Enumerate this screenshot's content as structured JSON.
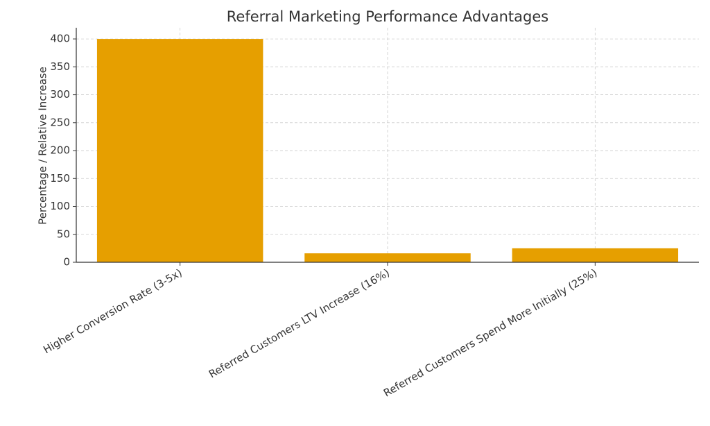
{
  "chart_data": {
    "type": "bar",
    "title": "Referral Marketing Performance Advantages",
    "y_label": "Percentage / Relative Increase",
    "categories": [
      "Higher Conversion Rate (3-5x)",
      "Referred Customers LTV Increase (16%)",
      "Referred Customers Spend More Initially (25%)"
    ],
    "values": [
      400,
      16,
      25
    ],
    "color": "#e69f00",
    "ylim": [
      0,
      420
    ],
    "yticks": [
      0,
      50,
      100,
      150,
      200,
      250,
      300,
      350,
      400
    ],
    "grid": true
  }
}
